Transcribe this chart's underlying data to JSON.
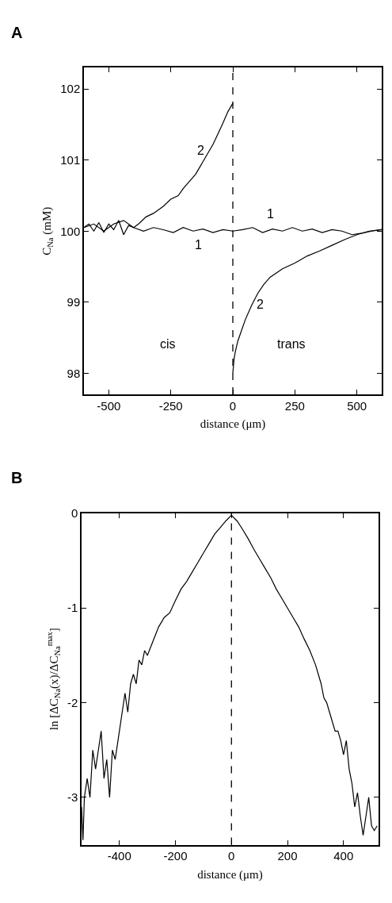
{
  "chart_data": [
    {
      "type": "line",
      "title": "A",
      "xlabel": "distance (μm)",
      "ylabel": "C$_{Na}$ (mM)",
      "xlim": [
        -600,
        600
      ],
      "ylim": [
        97.7,
        102.3
      ],
      "xticks": [
        -500,
        -250,
        0,
        250,
        500
      ],
      "yticks": [
        98,
        99,
        100,
        101,
        102
      ],
      "series": [
        {
          "color": "#000000",
          "x": [
            -600,
            -580,
            -560,
            -540,
            -520,
            -500,
            -480,
            -460,
            -440,
            -420,
            -400,
            -360,
            -320,
            -280,
            -240,
            -200,
            -160,
            -120,
            -80,
            -40,
            0,
            40,
            80,
            120,
            160,
            200,
            240,
            280,
            320,
            360,
            400,
            440,
            480,
            520,
            560,
            600
          ],
          "values": [
            100.05,
            100.1,
            100.0,
            100.12,
            99.98,
            100.1,
            100.02,
            100.15,
            99.95,
            100.08,
            100.05,
            100.0,
            100.05,
            100.02,
            99.98,
            100.05,
            100.0,
            100.03,
            99.98,
            100.02,
            100.0,
            100.02,
            100.05,
            99.98,
            100.03,
            100.0,
            100.05,
            100.0,
            100.03,
            99.98,
            100.02,
            100.0,
            99.95,
            99.97,
            100.0,
            100.02
          ]
        },
        {
          "color": "#000000",
          "x": [
            -600,
            -560,
            -520,
            -480,
            -440,
            -400,
            -380,
            -350,
            -320,
            -300,
            -280,
            -250,
            -220,
            -200,
            -180,
            -150,
            -120,
            -100,
            -80,
            -60,
            -40,
            -20,
            0
          ],
          "values": [
            100.05,
            100.1,
            100.0,
            100.1,
            100.15,
            100.05,
            100.1,
            100.2,
            100.25,
            100.3,
            100.35,
            100.45,
            100.5,
            100.6,
            100.68,
            100.8,
            100.98,
            101.1,
            101.22,
            101.37,
            101.52,
            101.68,
            101.8
          ]
        },
        {
          "color": "#000000",
          "x": [
            0,
            5,
            10,
            20,
            30,
            50,
            75,
            100,
            125,
            150,
            200,
            250,
            300,
            350,
            400,
            450,
            500,
            550,
            600
          ],
          "values": [
            98.0,
            98.2,
            98.3,
            98.45,
            98.55,
            98.75,
            98.95,
            99.12,
            99.25,
            99.35,
            99.47,
            99.55,
            99.65,
            99.72,
            99.8,
            99.88,
            99.95,
            100.0,
            100.02
          ]
        }
      ],
      "ref_lines": [
        {
          "axis": "x",
          "value": 0,
          "line_style": "dashed",
          "color": "#000000"
        }
      ],
      "annotations": [
        "2",
        "1",
        "1",
        "2",
        "cis",
        "trans"
      ]
    },
    {
      "type": "line",
      "title": "B",
      "xlabel": "distance (μm)",
      "ylabel": "ln [ΔC$_{Na}$(x)/ΔC$_{Na}$$^{max}$]",
      "xlim": [
        -535,
        525
      ],
      "ylim": [
        -3.5,
        0
      ],
      "xticks": [
        -400,
        -200,
        0,
        200,
        400
      ],
      "yticks": [
        0,
        -1,
        -2,
        -3
      ],
      "series": [
        {
          "color": "#000000",
          "x": [
            -535,
            -530,
            -525,
            -515,
            -505,
            -495,
            -485,
            -475,
            -465,
            -455,
            -445,
            -435,
            -425,
            -415,
            -400,
            -390,
            -380,
            -370,
            -360,
            -350,
            -340,
            -330,
            -320,
            -310,
            -300,
            -280,
            -260,
            -240,
            -220,
            -200,
            -180,
            -160,
            -140,
            -120,
            -100,
            -80,
            -60,
            -40,
            -20,
            0,
            20,
            40,
            60,
            80,
            100,
            120,
            140,
            160,
            180,
            200,
            220,
            240,
            260,
            280,
            300,
            310,
            320,
            330,
            340,
            350,
            360,
            370,
            380,
            390,
            400,
            410,
            420,
            430,
            440,
            450,
            460,
            470,
            480,
            490,
            500,
            510,
            520
          ],
          "values": [
            -3.1,
            -3.45,
            -3.0,
            -2.8,
            -3.0,
            -2.5,
            -2.7,
            -2.5,
            -2.3,
            -2.8,
            -2.6,
            -3.0,
            -2.5,
            -2.6,
            -2.3,
            -2.1,
            -1.9,
            -2.1,
            -1.8,
            -1.7,
            -1.8,
            -1.55,
            -1.6,
            -1.45,
            -1.5,
            -1.35,
            -1.2,
            -1.1,
            -1.05,
            -0.92,
            -0.8,
            -0.72,
            -0.62,
            -0.52,
            -0.42,
            -0.32,
            -0.22,
            -0.15,
            -0.08,
            -0.02,
            -0.08,
            -0.17,
            -0.27,
            -0.38,
            -0.48,
            -0.58,
            -0.68,
            -0.8,
            -0.9,
            -1.0,
            -1.1,
            -1.2,
            -1.33,
            -1.45,
            -1.6,
            -1.7,
            -1.8,
            -1.95,
            -2.0,
            -2.1,
            -2.2,
            -2.3,
            -2.3,
            -2.4,
            -2.55,
            -2.4,
            -2.7,
            -2.85,
            -3.1,
            -2.95,
            -3.2,
            -3.4,
            -3.2,
            -3.0,
            -3.3,
            -3.35,
            -3.3
          ]
        }
      ],
      "ref_lines": [
        {
          "axis": "x",
          "value": 0,
          "line_style": "dashed",
          "color": "#000000"
        }
      ]
    }
  ]
}
